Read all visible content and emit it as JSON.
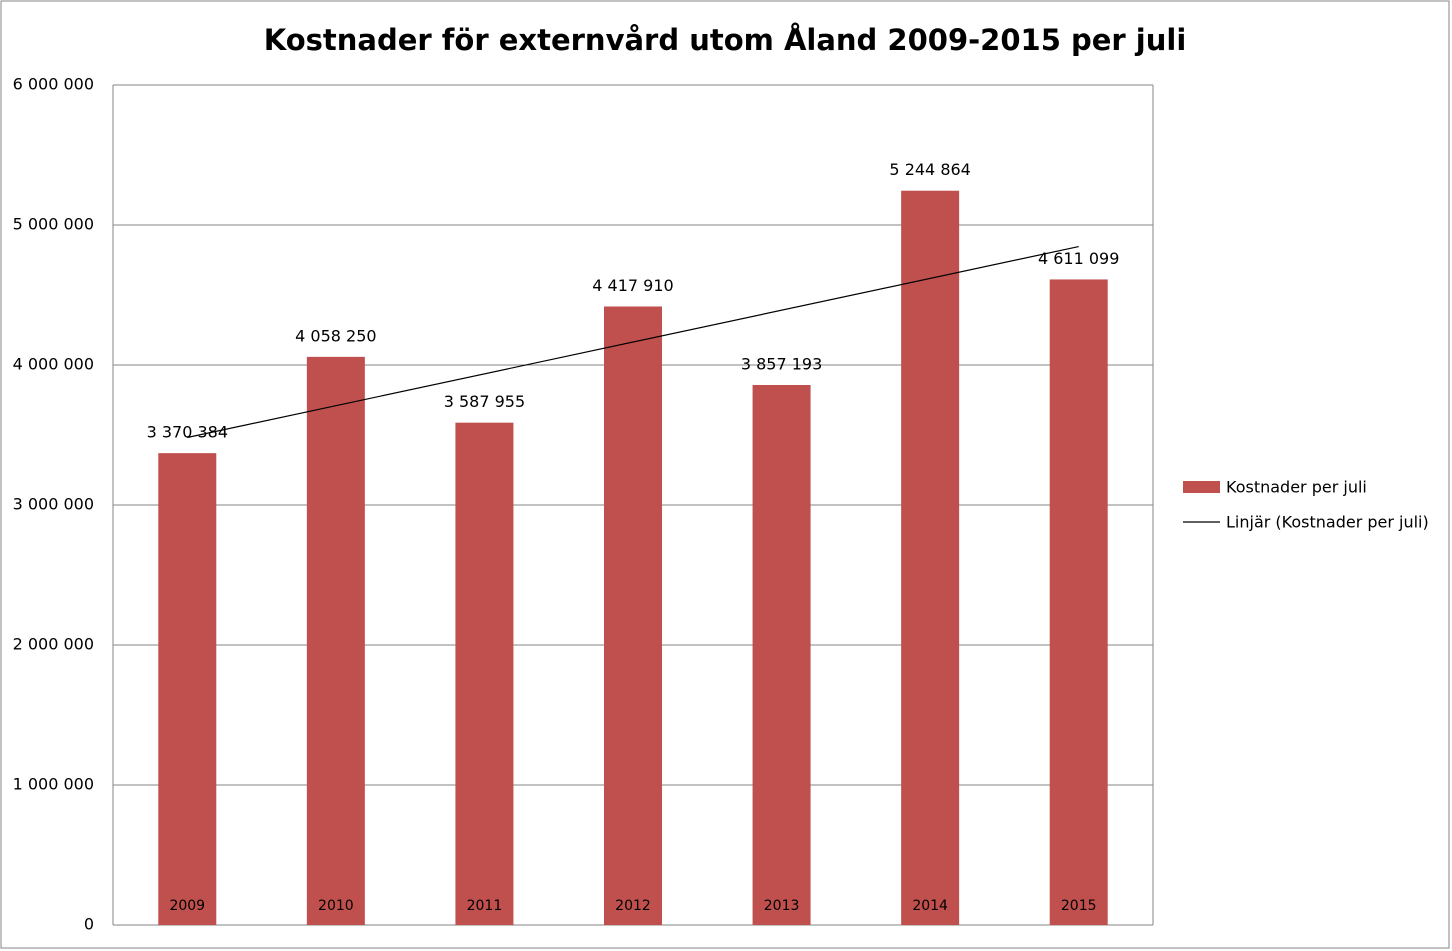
{
  "chart_data": {
    "type": "bar",
    "title": "Kostnader för externvård utom Åland 2009-2015 per juli",
    "categories": [
      "2009",
      "2010",
      "2011",
      "2012",
      "2013",
      "2014",
      "2015"
    ],
    "series": [
      {
        "name": "Kostnader per juli",
        "color": "#c0504d",
        "values": [
          3370384,
          4058250,
          3587955,
          4417910,
          3857193,
          5244864,
          4611099
        ],
        "value_labels": [
          "3 370 384",
          "4 058 250",
          "3 587 955",
          "4 417 910",
          "3 857 193",
          "5 244 864",
          "4 611 099"
        ]
      }
    ],
    "trendline": {
      "name": "Linjär (Kostnader per juli)",
      "color": "#000000",
      "fit": "linear"
    },
    "ylim": [
      0,
      6000000
    ],
    "yticks": [
      0,
      {
        "value": 1000000,
        "label": "1 000 000"
      },
      {
        "value": 2000000,
        "label": "2 000 000"
      },
      {
        "value": 3000000,
        "label": "3 000 000"
      },
      {
        "value": 4000000,
        "label": "4 000 000"
      },
      {
        "value": 5000000,
        "label": "5 000 000"
      },
      {
        "value": 6000000,
        "label": "6 000 000"
      }
    ],
    "grid": true,
    "legend": "right"
  }
}
